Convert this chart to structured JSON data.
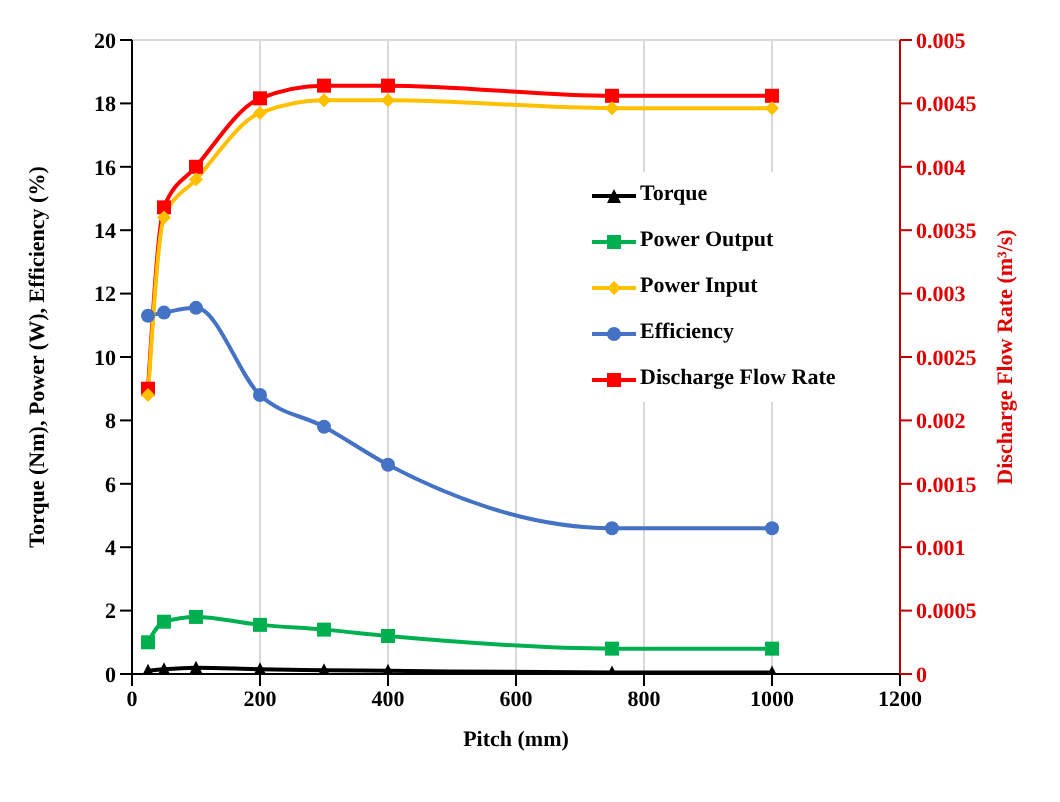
{
  "chart_data": {
    "type": "line",
    "xlabel": "Pitch (mm)",
    "ylabel": "Torque (Nm), Power (W), Efficiency (%)",
    "y2label": "Discharge Flow Rate (m³/s)",
    "x": [
      25,
      50,
      100,
      200,
      300,
      400,
      750,
      1000
    ],
    "xlim": [
      0,
      1200
    ],
    "xticks": [
      0,
      200,
      400,
      600,
      800,
      1000,
      1200
    ],
    "ylim": [
      0,
      20
    ],
    "yticks": [
      0,
      2,
      4,
      6,
      8,
      10,
      12,
      14,
      16,
      18,
      20
    ],
    "y2lim": [
      0,
      0.005
    ],
    "y2ticks": [
      0,
      0.0005,
      0.001,
      0.0015,
      0.002,
      0.0025,
      0.003,
      0.0035,
      0.004,
      0.0045,
      0.005
    ],
    "grid": true,
    "legend": "right",
    "series": [
      {
        "name": "Torque",
        "color": "#000000",
        "marker": "triangle",
        "values": [
          0.1,
          0.15,
          0.2,
          0.15,
          0.12,
          0.1,
          0.05,
          0.05
        ]
      },
      {
        "name": "Power Output",
        "color": "#00b050",
        "marker": "square",
        "values": [
          1.0,
          1.65,
          1.8,
          1.55,
          1.4,
          1.2,
          0.8,
          0.8
        ]
      },
      {
        "name": "Power Input",
        "color": "#ffc000",
        "marker": "diamond",
        "values": [
          8.8,
          14.4,
          15.6,
          17.7,
          18.1,
          18.1,
          17.85,
          17.85
        ]
      },
      {
        "name": "Efficiency",
        "color": "#4472c4",
        "marker": "circle",
        "values": [
          11.3,
          11.4,
          11.55,
          8.8,
          7.8,
          6.6,
          4.6,
          4.6
        ]
      },
      {
        "name": "Discharge Flow Rate",
        "color": "#ff0000",
        "marker": "square",
        "axis": "y2",
        "values": [
          0.00225,
          0.00368,
          0.004,
          0.00454,
          0.00464,
          0.00464,
          0.00456,
          0.00456
        ]
      }
    ]
  }
}
